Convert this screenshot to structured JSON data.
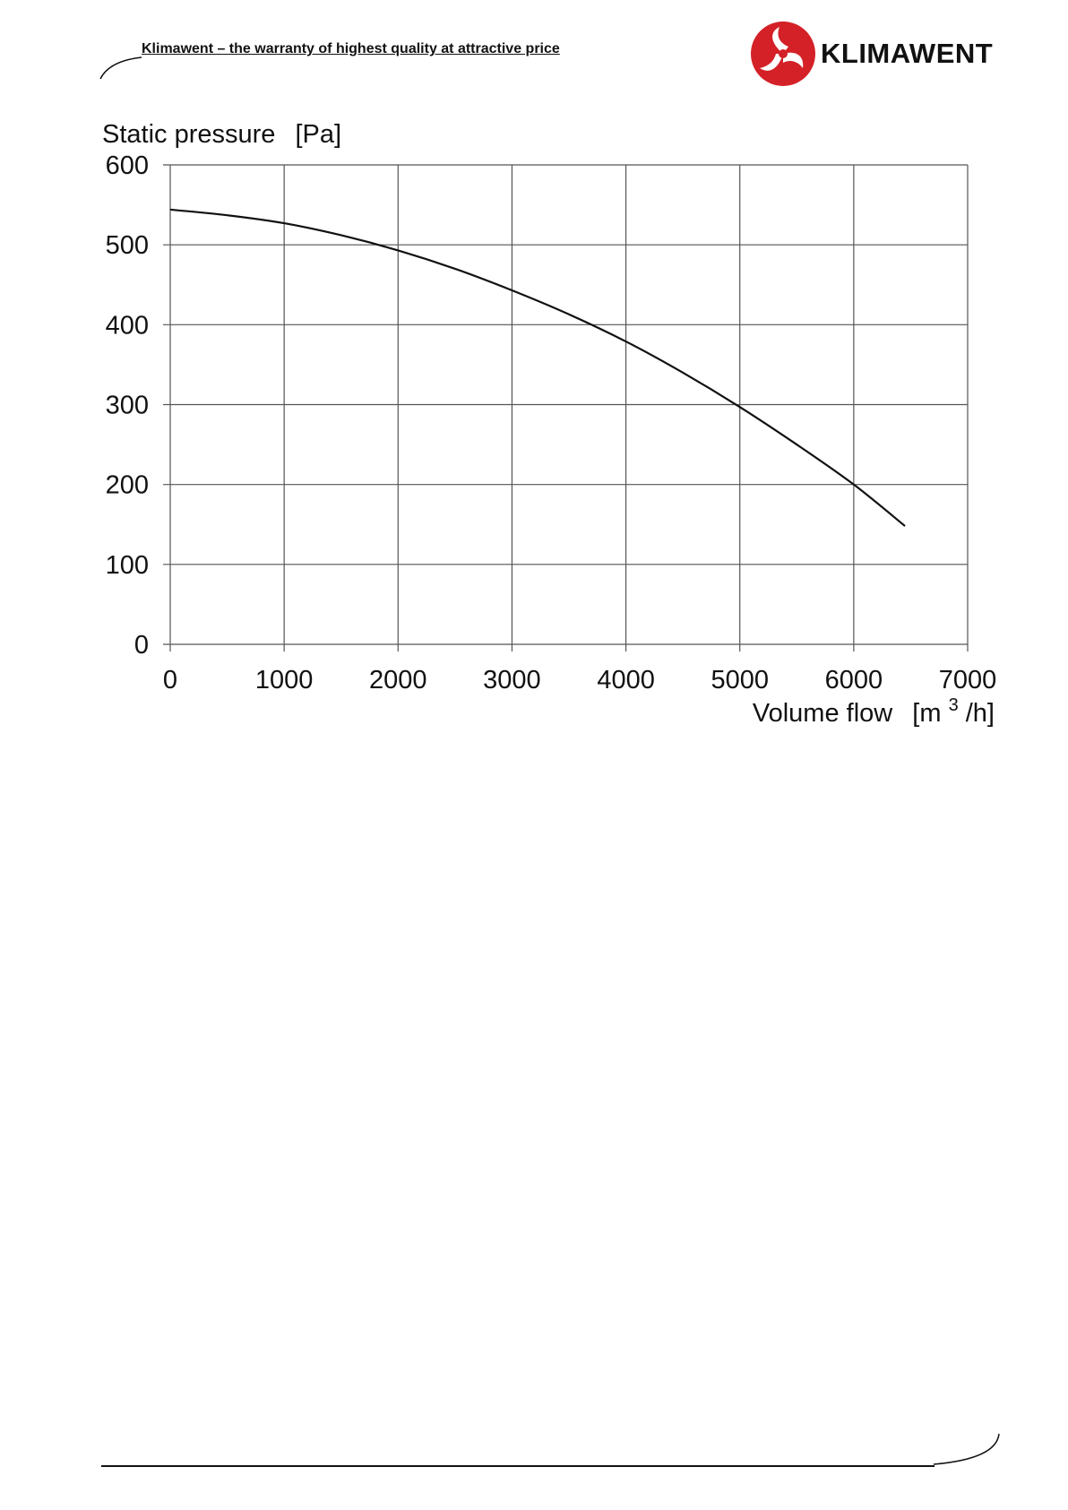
{
  "header": {
    "tagline": "Klimawent – the warranty of highest quality at attractive price",
    "logo_text": "KLIMAWENT",
    "logo_icon": "klimawent-fan-logo-icon",
    "brand_color": "#d42127"
  },
  "chart_data": {
    "type": "line",
    "title": "",
    "ylabel_main": "Static pressure",
    "ylabel_unit": "[Pa]",
    "xlabel_main": "Volume flow",
    "xlabel_unit_prefix": "[m",
    "xlabel_unit_sup": "3",
    "xlabel_unit_suffix": "/h]",
    "xlim": [
      0,
      7000
    ],
    "ylim": [
      0,
      600
    ],
    "xticks": [
      0,
      1000,
      2000,
      3000,
      4000,
      5000,
      6000,
      7000
    ],
    "yticks": [
      0,
      100,
      200,
      300,
      400,
      500,
      600
    ],
    "grid": true,
    "series": [
      {
        "x": [
          0,
          500,
          1000,
          1500,
          2000,
          2500,
          3000,
          3500,
          4000,
          4500,
          5000,
          5500,
          6000,
          6450
        ],
        "y": [
          544,
          537,
          527,
          512,
          493,
          470,
          443,
          413,
          379,
          340,
          297,
          250,
          200,
          148
        ]
      }
    ]
  }
}
